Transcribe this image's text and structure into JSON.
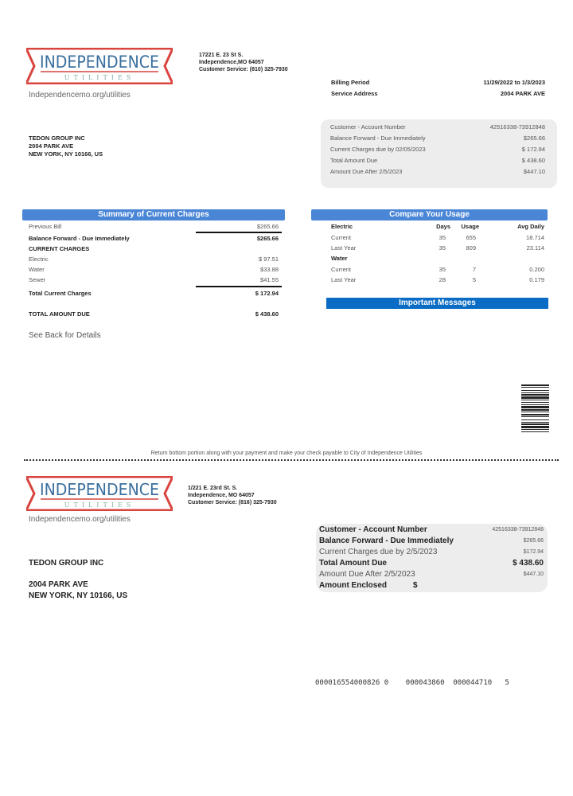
{
  "brand": {
    "logo_main": "INDEPENDENCE",
    "logo_sub": "UTILITIES",
    "website": "Independencemo.org/utilities",
    "colors": {
      "red": "#d9443f",
      "blue": "#3a6f9e",
      "header_blue": "#4a86d6",
      "messages_blue": "#0a6cc4"
    }
  },
  "top": {
    "address": [
      "17221 E. 23 St S.",
      "Independence,MO 64057",
      "Customer Service: (810) 325-7930"
    ],
    "billing_period_label": "Billing Period",
    "billing_period_value": "11/29/2022 to 1/3/2023",
    "service_address_label": "Service Address",
    "service_address_value": "2004 PARK AVE",
    "customer": [
      "TEDON GROUP INC",
      "2004 PARK AVE",
      "NEW YORK, NY 10166, US"
    ],
    "account_box": [
      {
        "label": "Customer - Account Number",
        "value": "42516338-73912848"
      },
      {
        "label": "Balance Forward - Due Immediately",
        "value": "$265.66"
      },
      {
        "label": "Current Charges due by 02/05/2023",
        "value": "$ 172.94"
      },
      {
        "label": "Total Amount Due",
        "value": "$ 438.60"
      },
      {
        "label": "Amount Due After 2/5/2023",
        "value": "$447.10"
      }
    ]
  },
  "summary": {
    "title": "Summary of Current Charges",
    "previous_bill": {
      "label": "Previous Bill",
      "value": "$265.66"
    },
    "balance_forward": {
      "label": "Balance Forward - Due Immediately",
      "value": "$265.66"
    },
    "current_charges_label": "CURRENT CHARGES",
    "charges": [
      {
        "label": "Electric",
        "value": "$ 97.51"
      },
      {
        "label": "Water",
        "value": "$33.88"
      },
      {
        "label": "Sewer",
        "value": "$41.55"
      }
    ],
    "total_current": {
      "label": "Total Current Charges",
      "value": "$ 172.94"
    },
    "total_due": {
      "label": "TOTAL AMOUNT DUE",
      "value": "$ 438.60"
    },
    "see_back": "See Back for Details"
  },
  "usage": {
    "title": "Compare Your Usage",
    "columns": [
      "Days",
      "Usage",
      "Avg Daily"
    ],
    "electric_label": "Electric",
    "electric": [
      {
        "label": "Current",
        "days": "35",
        "usage": "655",
        "avg": "18.714"
      },
      {
        "label": "Last Year",
        "days": "35",
        "usage": "809",
        "avg": "23.114"
      }
    ],
    "water_label": "Water",
    "water": [
      {
        "label": "Current",
        "days": "35",
        "usage": "7",
        "avg": "0.200"
      },
      {
        "label": "Last Year",
        "days": "28",
        "usage": "5",
        "avg": "0.179"
      }
    ]
  },
  "messages_title": "Important Messages",
  "return_note": "Return bottom portion along with your payment and make your check payable to City of Independence Utilities",
  "stub": {
    "address": [
      "1/221 E. 23rd St. S.",
      "Independence, MO 64057",
      "Customer Service: (816) 325-7930"
    ],
    "customer_name": "TEDON GROUP INC",
    "customer_address": [
      "2004 PARK AVE",
      "NEW YORK, NY 10166, US"
    ],
    "box": [
      {
        "label": "Customer - Account Number",
        "value": "42516338-73912848"
      },
      {
        "label": "Balance Forward - Due Immediately",
        "value": "$265.66"
      },
      {
        "label": "Current Charges due by 2/5/2023",
        "value": "$172.94"
      },
      {
        "label": "Total Amount Due",
        "value": "$ 438.60"
      },
      {
        "label": "Amount Due After 2/5/2023",
        "value": "$447.10"
      }
    ],
    "amount_enclosed_label": "Amount Enclosed",
    "amount_enclosed_symbol": "$",
    "scanline": "000016554000826 0    000043860  000044710   5"
  }
}
